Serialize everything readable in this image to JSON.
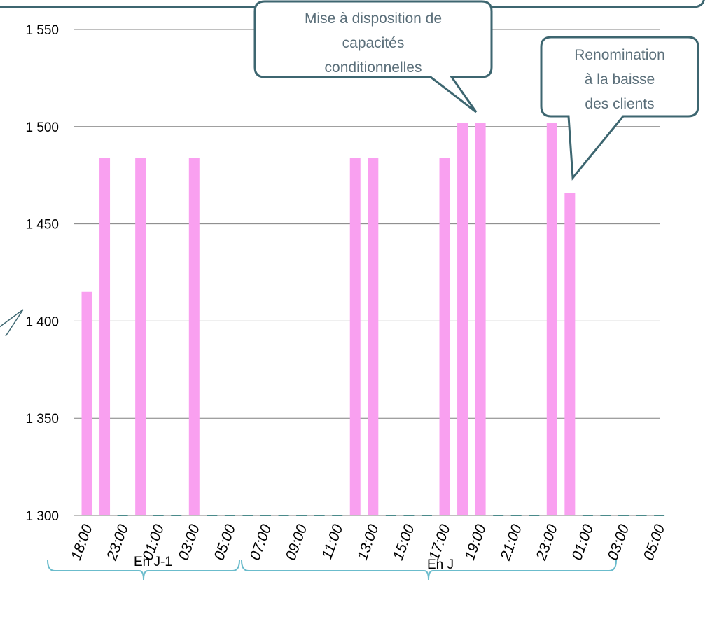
{
  "colors": {
    "bar": "#f9a0f0",
    "grid": "#808080",
    "axis_base": "#4a8a8a",
    "callout_fill": "#ffffff",
    "callout_stroke": "#3d6670",
    "brace": "#6bbccc"
  },
  "chart_data": {
    "type": "bar",
    "title": "",
    "xlabel": "",
    "ylabel": "",
    "ylim": [
      1300,
      1550
    ],
    "yticks": [
      1300,
      1350,
      1400,
      1450,
      1500,
      1550
    ],
    "ytick_labels": [
      "1 300",
      "1 350",
      "1 400",
      "1 450",
      "1 500",
      "1 550"
    ],
    "grid": true,
    "legend": "none",
    "categories": [
      "18:00",
      "",
      "23:00",
      "",
      "01:00",
      "",
      "03:00",
      "",
      "05:00",
      "",
      "07:00",
      "",
      "09:00",
      "",
      "11:00",
      "",
      "13:00",
      "",
      "15:00",
      "",
      "17:00",
      "",
      "19:00",
      "",
      "21:00",
      "",
      "23:00",
      "",
      "01:00",
      "",
      "03:00",
      "",
      "05:00"
    ],
    "tick_labels": [
      "18:00",
      "23:00",
      "01:00",
      "03:00",
      "05:00",
      "07:00",
      "09:00",
      "11:00",
      "13:00",
      "15:00",
      "17:00",
      "19:00",
      "21:00",
      "23:00",
      "01:00",
      "03:00",
      "05:00"
    ],
    "values": [
      1415,
      1484,
      1300,
      1484,
      1300,
      1300,
      1484,
      1300,
      1300,
      1300,
      1300,
      1300,
      1300,
      1300,
      1300,
      1484,
      1484,
      1300,
      1300,
      1300,
      1484,
      1502,
      1502,
      1300,
      1300,
      1300,
      1502,
      1466,
      1300,
      1300,
      1300,
      1300,
      1300
    ],
    "annotations": [
      {
        "text": [
          "Mise à disposition de",
          "capacités",
          "conditionnelles"
        ]
      },
      {
        "text": [
          "Renomination",
          "à la baisse",
          "des clients"
        ]
      }
    ],
    "groups": [
      {
        "label": "En J-1"
      },
      {
        "label": "En J"
      }
    ]
  }
}
